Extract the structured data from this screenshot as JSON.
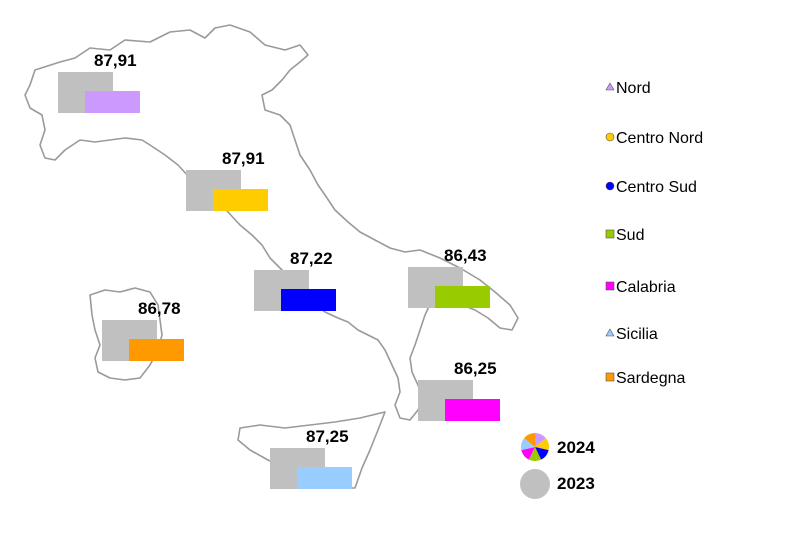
{
  "chart_data": {
    "type": "bar",
    "categories": [
      "Nord",
      "Centro Nord",
      "Centro Sud",
      "Sud",
      "Calabria",
      "Sicilia",
      "Sardegna"
    ],
    "series": [
      {
        "name": "2024",
        "values": [
          87.91,
          87.91,
          87.22,
          86.43,
          86.25,
          87.25,
          86.78
        ]
      },
      {
        "name": "2023",
        "values": [
          null,
          null,
          null,
          null,
          null,
          null,
          null
        ]
      }
    ],
    "value_labels": [
      "87,91",
      "87,91",
      "87,22",
      "86,43",
      "86,25",
      "87,25",
      "86,78"
    ],
    "colors": [
      "#cc99ff",
      "#ffcc00",
      "#0000ff",
      "#99cc00",
      "#ff00ff",
      "#99ccff",
      "#ff9900"
    ],
    "color_2023": "#c0c0c0",
    "legend_markers": [
      "triangle",
      "circle",
      "circle",
      "square",
      "square",
      "triangle",
      "square"
    ],
    "legend_placement": "right",
    "background": "map-of-italy"
  }
}
